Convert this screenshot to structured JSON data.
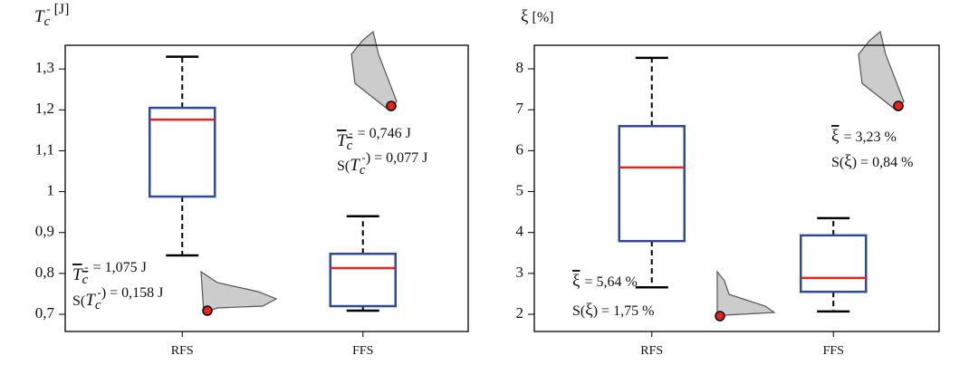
{
  "chart_data": [
    {
      "type": "box",
      "y_label": {
        "base": "T",
        "sub": "c",
        "sup": "-",
        "unit": "[J]"
      },
      "categories": [
        "RFS",
        "FFS"
      ],
      "boxes": [
        {
          "whisker_low": 0.844,
          "q1": 0.988,
          "median": 1.176,
          "q3": 1.205,
          "whisker_high": 1.33
        },
        {
          "whisker_low": 0.709,
          "q1": 0.72,
          "median": 0.813,
          "q3": 0.848,
          "whisker_high": 0.94
        }
      ],
      "box_color": "#2e4a9a",
      "median_color": "#e8231e",
      "ylim": [
        0.658,
        1.358
      ],
      "yticks": [
        {
          "value": 0.7,
          "label": "0,7"
        },
        {
          "value": 0.8,
          "label": "0,8"
        },
        {
          "value": 0.9,
          "label": "0,9"
        },
        1,
        {
          "value": 1.1,
          "label": "1,1"
        },
        {
          "value": 1.2,
          "label": "1,2"
        },
        {
          "value": 1.3,
          "label": "1,3"
        }
      ],
      "annotations": [
        {
          "mean": "= 1,075 J",
          "sd_prefix": "S(",
          "sd_suffix": ") = 0,158 J"
        },
        {
          "mean": "= 0,746 J",
          "sd_prefix": "S(",
          "sd_suffix": ") = 0,077 J"
        }
      ]
    },
    {
      "type": "box",
      "y_label": {
        "base": "ξ",
        "unit": "[%]"
      },
      "categories": [
        "RFS",
        "FFS"
      ],
      "boxes": [
        {
          "whisker_low": 2.66,
          "q1": 3.79,
          "median": 5.59,
          "q3": 6.6,
          "whisker_high": 8.27
        },
        {
          "whisker_low": 2.07,
          "q1": 2.55,
          "median": 2.89,
          "q3": 3.93,
          "whisker_high": 4.35
        }
      ],
      "box_color": "#2e4a9a",
      "median_color": "#e8231e",
      "ylim": [
        1.58,
        8.576
      ],
      "yticks": [
        2,
        3,
        4,
        5,
        6,
        7,
        8
      ],
      "annotations": [
        {
          "mean": "= 5,64 %",
          "sd_prefix": "S(",
          "sd_suffix": ") = 1,75 %"
        },
        {
          "mean": "= 3,23 %",
          "sd_prefix": "S(",
          "sd_suffix": ") = 0,84 %"
        }
      ]
    }
  ]
}
